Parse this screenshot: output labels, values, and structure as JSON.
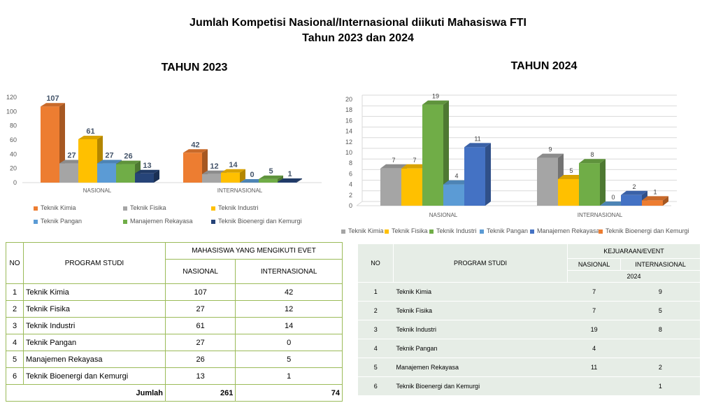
{
  "title_line1": "Jumlah Kompetisi Nasional/Internasional diikuti Mahasiswa FTI",
  "title_line2": "Tahun 2023 dan 2024",
  "chart_data": [
    {
      "type": "bar",
      "title": "TAHUN 2023",
      "categories": [
        "NASIONAL",
        "INTERNASIONAL"
      ],
      "ylim": [
        0,
        120
      ],
      "yticks": [
        0,
        20,
        40,
        60,
        80,
        100,
        120
      ],
      "grid": false,
      "legend_position": "bottom",
      "series": [
        {
          "name": "Teknik Kimia",
          "color": "#ed7d31",
          "values": [
            107,
            42
          ]
        },
        {
          "name": "Teknik Fisika",
          "color": "#a5a5a5",
          "values": [
            27,
            12
          ]
        },
        {
          "name": "Teknik Industri",
          "color": "#ffc000",
          "values": [
            61,
            14
          ]
        },
        {
          "name": "Teknik Pangan",
          "color": "#5b9bd5",
          "values": [
            27,
            0
          ]
        },
        {
          "name": "Manajemen Rekayasa",
          "color": "#70ad47",
          "values": [
            26,
            5
          ]
        },
        {
          "name": "Teknik Bioenergi dan Kemurgi",
          "color": "#264478",
          "values": [
            13,
            1
          ]
        }
      ]
    },
    {
      "type": "bar",
      "title": "TAHUN 2024",
      "categories": [
        "NASIONAL",
        "INTERNASIONAL"
      ],
      "ylim": [
        0,
        20
      ],
      "yticks": [
        0,
        2,
        4,
        6,
        8,
        10,
        12,
        14,
        16,
        18,
        20
      ],
      "grid": true,
      "legend_position": "bottom",
      "series": [
        {
          "name": "Teknik Kimia",
          "color": "#a5a5a5",
          "values": [
            7,
            9
          ]
        },
        {
          "name": "Teknik Fisika",
          "color": "#ffc000",
          "values": [
            7,
            5
          ]
        },
        {
          "name": "Teknik Industri",
          "color": "#70ad47",
          "values": [
            19,
            8
          ]
        },
        {
          "name": "Teknik Pangan",
          "color": "#5b9bd5",
          "values": [
            4,
            0
          ]
        },
        {
          "name": "Manajemen Rekayasa",
          "color": "#4472c4",
          "values": [
            11,
            2
          ]
        },
        {
          "name": "Teknik Bioenergi dan Kemurgi",
          "color": "#ed7d31",
          "values": [
            null,
            1
          ]
        }
      ]
    }
  ],
  "table1": {
    "h_no": "NO",
    "h_program": "PROGRAM STUDI",
    "h_group": "MAHASISWA YANG MENGIKUTI EVET",
    "h_nas": "NASIONAL",
    "h_int": "INTERNASIONAL",
    "rows": [
      {
        "no": "1",
        "name": "Teknik Kimia",
        "nas": "107",
        "int": "42"
      },
      {
        "no": "2",
        "name": "Teknik Fisika",
        "nas": "27",
        "int": "12"
      },
      {
        "no": "3",
        "name": "Teknik Industri",
        "nas": "61",
        "int": "14"
      },
      {
        "no": "4",
        "name": "Teknik Pangan",
        "nas": "27",
        "int": "0"
      },
      {
        "no": "5",
        "name": "Manajemen Rekayasa",
        "nas": "26",
        "int": "5"
      },
      {
        "no": "6",
        "name": "Teknik Bioenergi dan Kemurgi",
        "nas": "13",
        "int": "1"
      }
    ],
    "total_label": "Jumlah",
    "total_nas": "261",
    "total_int": "74"
  },
  "table2": {
    "h_no": "NO",
    "h_program": "PROGRAM STUDI",
    "h_group": "KEJUARAAN/EVENT",
    "h_nas": "NASIONAL",
    "h_int": "INTERNASIONAL",
    "h_year": "2024",
    "rows": [
      {
        "no": "1",
        "name": "Teknik Kimia",
        "nas": "7",
        "int": "9"
      },
      {
        "no": "2",
        "name": "Teknik Fisika",
        "nas": "7",
        "int": "5"
      },
      {
        "no": "3",
        "name": "Teknik Industri",
        "nas": "19",
        "int": "8"
      },
      {
        "no": "4",
        "name": "Teknik Pangan",
        "nas": "4",
        "int": ""
      },
      {
        "no": "5",
        "name": "Manajemen Rekayasa",
        "nas": "11",
        "int": "2"
      },
      {
        "no": "6",
        "name": "Teknik Bioenergi dan Kemurgi",
        "nas": "",
        "int": "1"
      }
    ]
  }
}
